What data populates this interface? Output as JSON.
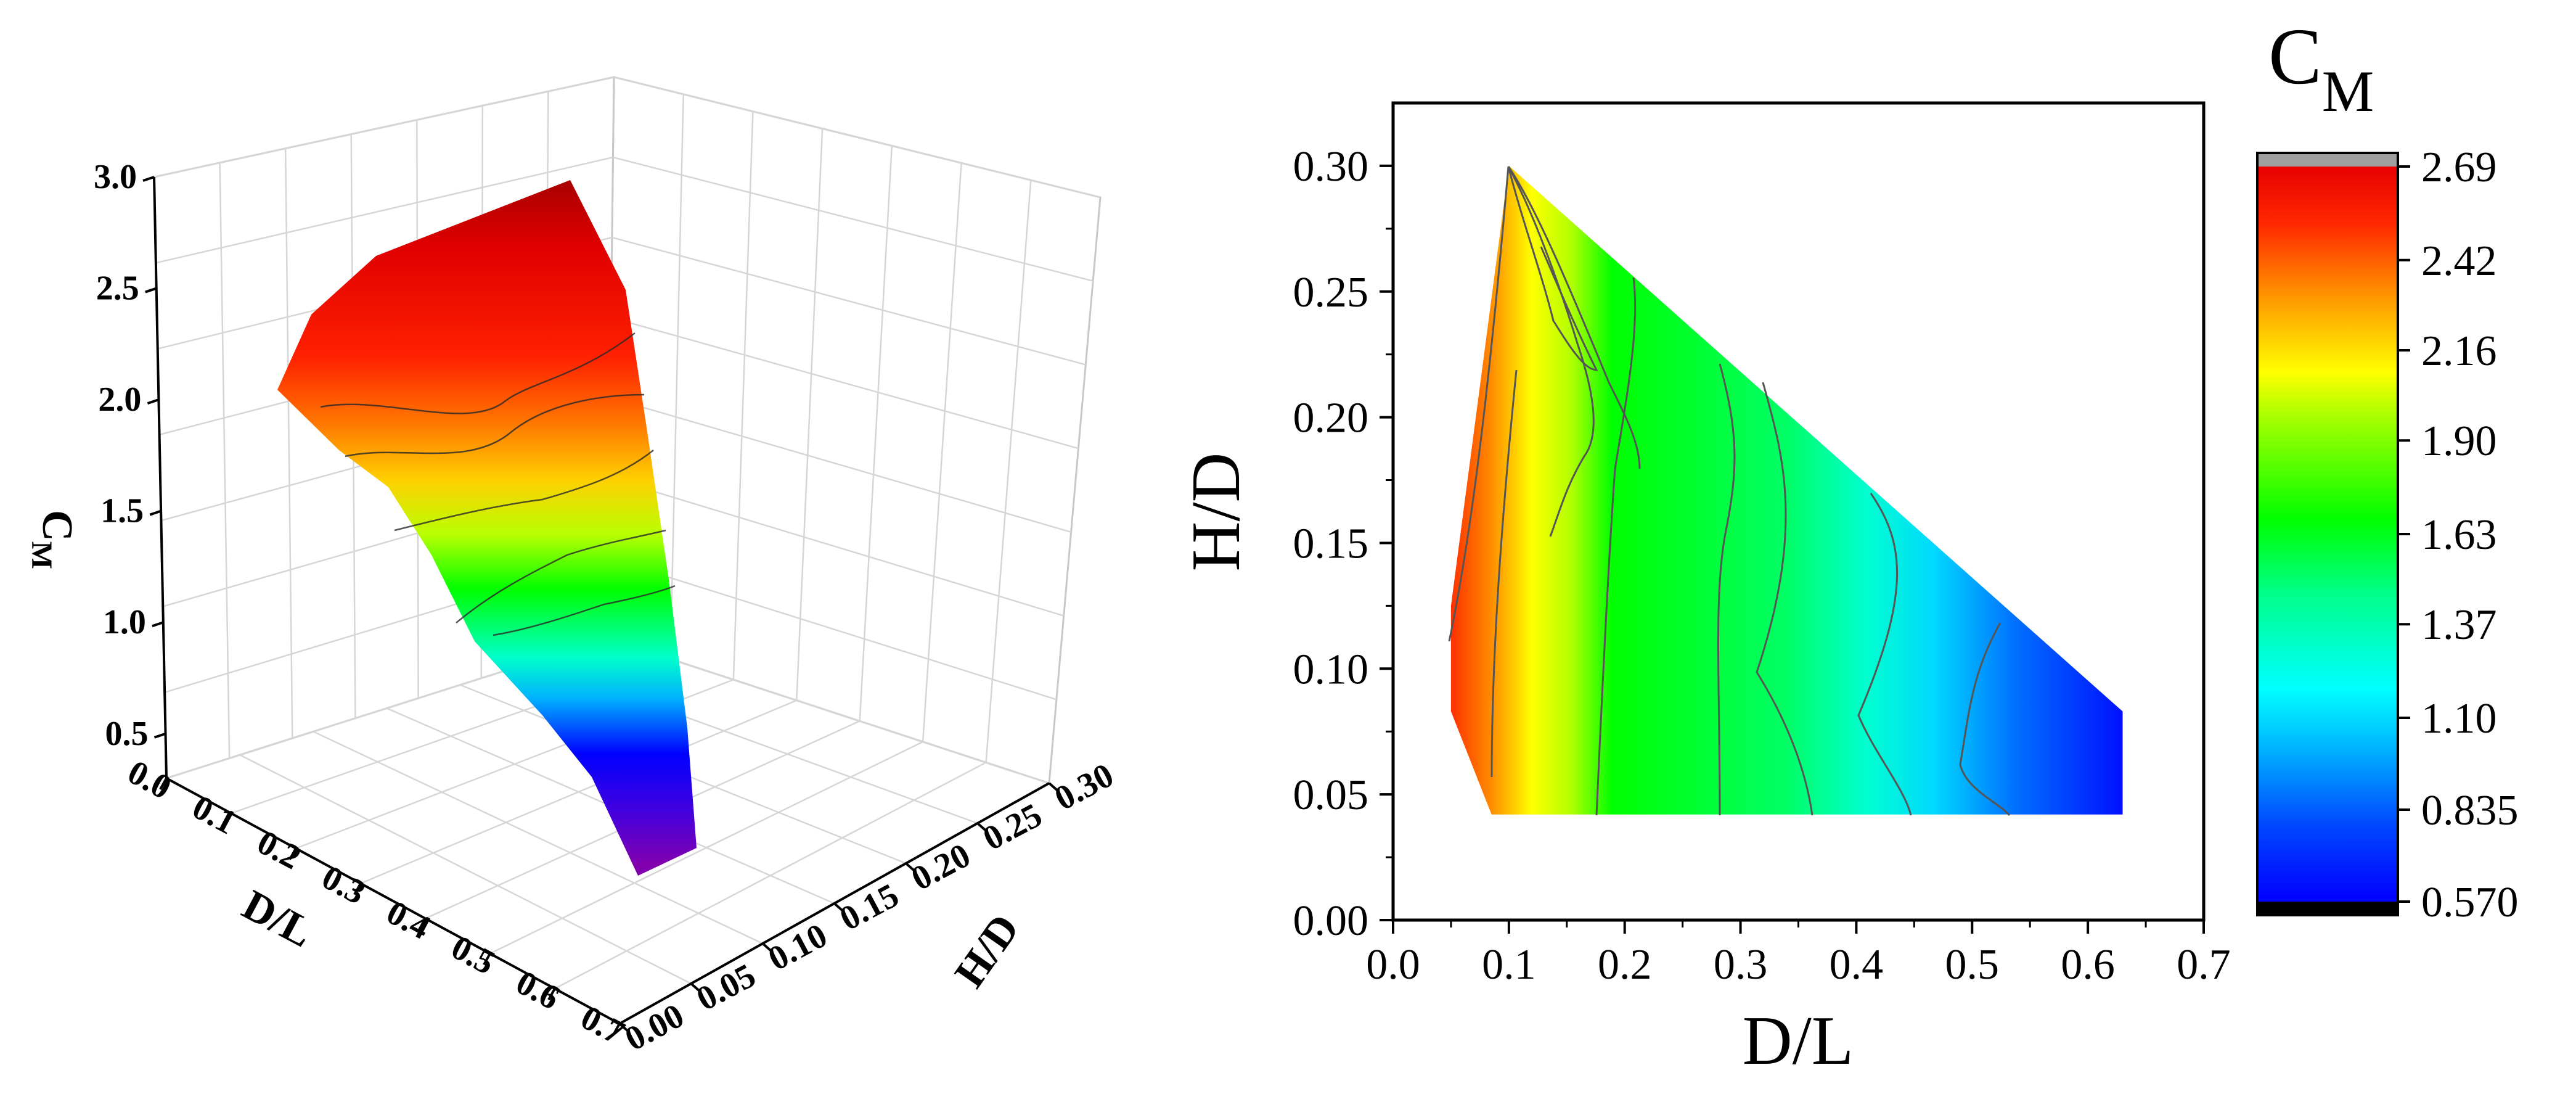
{
  "palette": [
    "#7000b0",
    "#2000f0",
    "#0000ff",
    "#0055ff",
    "#00b4ff",
    "#00ffff",
    "#00ffaa",
    "#00ff55",
    "#00ff00",
    "#60ff00",
    "#c0ff00",
    "#ffff00",
    "#ffc000",
    "#ff8000",
    "#ff4000",
    "#ff1000",
    "#e00000",
    "#b00000"
  ],
  "chart_data": [
    {
      "type": "surface",
      "ylabel": "C",
      "ylabel_sub": "M",
      "zlabel_xaxis": "D/L",
      "zlabel_yaxis": "H/D",
      "x_ticks": [
        "0.0",
        "0.1",
        "0.2",
        "0.3",
        "0.4",
        "0.5",
        "0.6",
        "0.7"
      ],
      "y_ticks": [
        "0.00",
        "0.05",
        "0.10",
        "0.15",
        "0.20",
        "0.25",
        "0.30"
      ],
      "z_ticks": [
        "0.5",
        "1.0",
        "1.5",
        "2.0",
        "2.5",
        "3.0"
      ],
      "xlim": [
        0,
        0.7
      ],
      "ylim": [
        0,
        0.3
      ],
      "zlim": [
        0.3,
        3.0
      ],
      "grid": true,
      "surface_edge_points": [
        {
          "x": 0.05,
          "y": 0.05,
          "z": 2.63
        },
        {
          "x": 0.1,
          "y": 0.3,
          "z": 2.69
        },
        {
          "x": 0.63,
          "y": 0.05,
          "z": 0.57
        },
        {
          "x": 0.63,
          "y": 0.09,
          "z": 0.6
        }
      ]
    },
    {
      "type": "contour",
      "xlabel": "D/L",
      "ylabel": "H/D",
      "xlim": [
        0,
        0.7
      ],
      "ylim": [
        0,
        0.325
      ],
      "x_ticks": [
        "0.0",
        "0.1",
        "0.2",
        "0.3",
        "0.4",
        "0.5",
        "0.6",
        "0.7"
      ],
      "y_ticks": [
        "0.00",
        "0.05",
        "0.10",
        "0.15",
        "0.20",
        "0.25",
        "0.30"
      ],
      "domain_polygon": [
        [
          0.05,
          0.125
        ],
        [
          0.1,
          0.3
        ],
        [
          0.63,
          0.083
        ],
        [
          0.63,
          0.042
        ],
        [
          0.085,
          0.042
        ],
        [
          0.05,
          0.083
        ]
      ],
      "cm_vs_DL_at_H05": [
        {
          "x": 0.06,
          "cm": 2.55
        },
        {
          "x": 0.12,
          "cm": 2.05
        },
        {
          "x": 0.2,
          "cm": 1.85
        },
        {
          "x": 0.3,
          "cm": 1.55
        },
        {
          "x": 0.4,
          "cm": 1.2
        },
        {
          "x": 0.5,
          "cm": 0.9
        },
        {
          "x": 0.62,
          "cm": 0.62
        }
      ]
    },
    {
      "type": "colorbar",
      "title": "C",
      "title_sub": "M",
      "tick_labels": [
        "2.69",
        "2.42",
        "2.16",
        "1.90",
        "1.63",
        "1.37",
        "1.10",
        "0.835",
        "0.570"
      ],
      "tick_values": [
        2.69,
        2.42,
        2.16,
        1.9,
        1.63,
        1.37,
        1.1,
        0.835,
        0.57
      ],
      "range": [
        0.57,
        2.69
      ],
      "over_color": "#a0a0a0",
      "under_color": "#000000"
    }
  ]
}
